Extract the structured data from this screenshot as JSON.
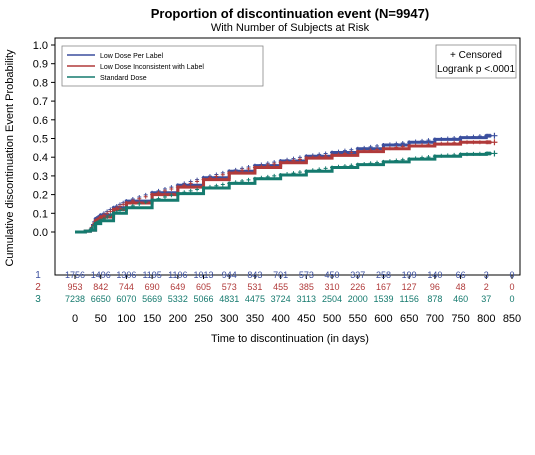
{
  "chart_data": {
    "type": "line",
    "title": "Proportion of discontinuation event (N=9947)",
    "subtitle": "With Number of Subjects at Risk",
    "xlabel": "Time to discontinuation (in days)",
    "ylabel": "Cumulative discontinuation Event Probability",
    "xlim": [
      0,
      850
    ],
    "ylim": [
      0.0,
      1.0
    ],
    "x_ticks": [
      0,
      50,
      100,
      150,
      200,
      250,
      300,
      350,
      400,
      450,
      500,
      550,
      600,
      650,
      700,
      750,
      800,
      850
    ],
    "y_ticks": [
      "0.0",
      "0.1",
      "0.2",
      "0.3",
      "0.4",
      "0.5",
      "0.6",
      "0.7",
      "0.8",
      "0.9",
      "1.0"
    ],
    "grid": false,
    "legend_position": "top-left",
    "censored_label": "+ Censored",
    "logrank_label": "Logrank p <.0001",
    "series": [
      {
        "name": "Low Dose Per Label",
        "color": "#3b4f9e",
        "points": [
          [
            0,
            0.0
          ],
          [
            20,
            0.005
          ],
          [
            30,
            0.01
          ],
          [
            40,
            0.07
          ],
          [
            50,
            0.09
          ],
          [
            75,
            0.13
          ],
          [
            100,
            0.165
          ],
          [
            150,
            0.21
          ],
          [
            200,
            0.25
          ],
          [
            250,
            0.29
          ],
          [
            300,
            0.325
          ],
          [
            350,
            0.355
          ],
          [
            400,
            0.38
          ],
          [
            450,
            0.405
          ],
          [
            500,
            0.425
          ],
          [
            550,
            0.445
          ],
          [
            600,
            0.465
          ],
          [
            650,
            0.48
          ],
          [
            700,
            0.495
          ],
          [
            750,
            0.505
          ],
          [
            800,
            0.515
          ],
          [
            810,
            0.515
          ]
        ]
      },
      {
        "name": "Low Dose Inconsistent with Label",
        "color": "#b03a3a",
        "points": [
          [
            0,
            0.0
          ],
          [
            20,
            0.005
          ],
          [
            30,
            0.01
          ],
          [
            40,
            0.06
          ],
          [
            50,
            0.08
          ],
          [
            75,
            0.12
          ],
          [
            100,
            0.155
          ],
          [
            150,
            0.2
          ],
          [
            200,
            0.24
          ],
          [
            250,
            0.28
          ],
          [
            300,
            0.315
          ],
          [
            350,
            0.345
          ],
          [
            400,
            0.37
          ],
          [
            450,
            0.395
          ],
          [
            500,
            0.41
          ],
          [
            550,
            0.43
          ],
          [
            600,
            0.445
          ],
          [
            650,
            0.46
          ],
          [
            700,
            0.47
          ],
          [
            750,
            0.48
          ],
          [
            800,
            0.48
          ],
          [
            810,
            0.48
          ]
        ]
      },
      {
        "name": "Standard Dose",
        "color": "#157a6e",
        "points": [
          [
            0,
            0.0
          ],
          [
            20,
            0.005
          ],
          [
            30,
            0.01
          ],
          [
            40,
            0.045
          ],
          [
            50,
            0.06
          ],
          [
            75,
            0.1
          ],
          [
            100,
            0.13
          ],
          [
            150,
            0.17
          ],
          [
            200,
            0.205
          ],
          [
            250,
            0.235
          ],
          [
            300,
            0.26
          ],
          [
            350,
            0.285
          ],
          [
            400,
            0.305
          ],
          [
            450,
            0.325
          ],
          [
            500,
            0.345
          ],
          [
            550,
            0.36
          ],
          [
            600,
            0.375
          ],
          [
            650,
            0.39
          ],
          [
            700,
            0.405
          ],
          [
            750,
            0.415
          ],
          [
            800,
            0.42
          ],
          [
            810,
            0.42
          ]
        ]
      }
    ],
    "at_risk": {
      "times": [
        0,
        50,
        100,
        150,
        200,
        250,
        300,
        350,
        400,
        450,
        500,
        550,
        600,
        650,
        700,
        750,
        800,
        850
      ],
      "rows": [
        {
          "label": "1",
          "color": "#3b4f9e",
          "values": [
            "1756",
            "1496",
            "1306",
            "1195",
            "1106",
            "1013",
            "944",
            "843",
            "701",
            "573",
            "450",
            "337",
            "258",
            "199",
            "140",
            "66",
            "3",
            "0"
          ]
        },
        {
          "label": "2",
          "color": "#b03a3a",
          "values": [
            "953",
            "842",
            "744",
            "690",
            "649",
            "605",
            "573",
            "531",
            "455",
            "385",
            "310",
            "226",
            "167",
            "127",
            "96",
            "48",
            "2",
            "0"
          ]
        },
        {
          "label": "3",
          "color": "#157a6e",
          "values": [
            "7238",
            "6650",
            "6070",
            "5669",
            "5332",
            "5066",
            "4831",
            "4475",
            "3724",
            "3113",
            "2504",
            "2000",
            "1539",
            "1156",
            "878",
            "460",
            "37",
            "0"
          ]
        }
      ]
    }
  }
}
